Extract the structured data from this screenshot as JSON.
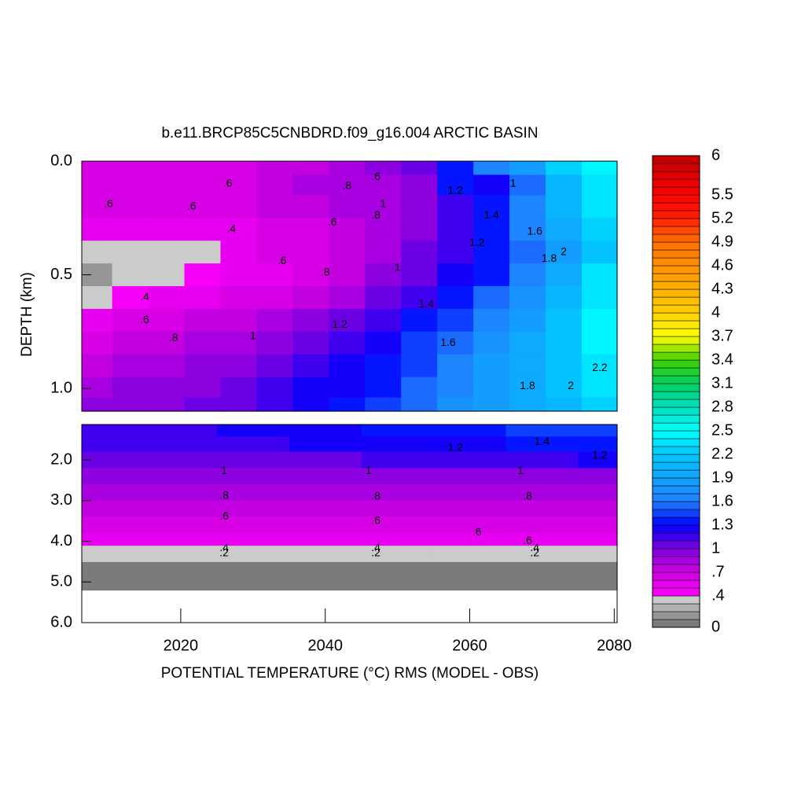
{
  "chart_data": {
    "type": "contour",
    "title": "b.e11.BRCP85C5CNBDRD.f09_g16.004 ARCTIC BASIN",
    "xlabel": "POTENTIAL TEMPERATURE (°C) RMS (MODEL - OBS)",
    "ylabel": "DEPTH (km)",
    "xlim": [
      2006.3,
      2080.4
    ],
    "xticks": [
      2020,
      2040,
      2060,
      2080
    ],
    "contour_interval": 0.1,
    "panels": [
      {
        "ylim": [
          0,
          1.1
        ],
        "yticks": [
          {
            "value": 0,
            "label": "0.0"
          },
          {
            "value": 0.5,
            "label": "0.5"
          },
          {
            "value": 1.0,
            "label": "1.0"
          }
        ],
        "x": [
          2008,
          2013,
          2018,
          2023,
          2028,
          2033,
          2038,
          2043,
          2048,
          2053,
          2058,
          2063,
          2068,
          2073,
          2078
        ],
        "y": [
          0.02,
          0.1,
          0.2,
          0.3,
          0.4,
          0.5,
          0.6,
          0.7,
          0.8,
          0.9,
          1.0,
          1.08
        ],
        "z": [
          [
            0.6,
            0.6,
            0.6,
            0.6,
            0.6,
            0.7,
            0.7,
            0.8,
            0.9,
            1.0,
            1.3,
            1.6,
            1.8,
            2.2,
            2.4
          ],
          [
            0.6,
            0.6,
            0.6,
            0.6,
            0.6,
            0.7,
            0.8,
            0.8,
            0.8,
            0.9,
            1.3,
            1.2,
            1.5,
            2.0,
            2.3
          ],
          [
            0.6,
            0.6,
            0.6,
            0.6,
            0.6,
            0.7,
            0.7,
            0.8,
            0.8,
            0.9,
            1.1,
            1.3,
            1.6,
            2.0,
            2.3
          ],
          [
            0.5,
            0.5,
            0.5,
            0.5,
            0.5,
            0.6,
            0.6,
            0.7,
            0.8,
            0.9,
            1.1,
            1.3,
            1.6,
            1.9,
            2.2
          ],
          [
            0.35,
            0.35,
            0.35,
            0.35,
            0.5,
            0.6,
            0.6,
            0.7,
            0.8,
            1.0,
            1.1,
            1.3,
            1.5,
            1.8,
            2.1
          ],
          [
            0.15,
            0.3,
            0.35,
            0.45,
            0.5,
            0.55,
            0.65,
            0.75,
            0.9,
            1.0,
            1.2,
            1.35,
            1.6,
            1.9,
            2.3
          ],
          [
            0.35,
            0.4,
            0.5,
            0.55,
            0.6,
            0.65,
            0.75,
            0.85,
            1.0,
            1.15,
            1.3,
            1.5,
            1.7,
            2.0,
            2.3
          ],
          [
            0.55,
            0.6,
            0.65,
            0.7,
            0.75,
            0.8,
            0.9,
            1.0,
            1.15,
            1.3,
            1.45,
            1.6,
            1.8,
            2.1,
            2.4
          ],
          [
            0.65,
            0.7,
            0.75,
            0.8,
            0.85,
            0.9,
            1.0,
            1.1,
            1.25,
            1.4,
            1.55,
            1.7,
            1.9,
            2.1,
            2.4
          ],
          [
            0.75,
            0.8,
            0.85,
            0.9,
            0.95,
            1.0,
            1.1,
            1.2,
            1.3,
            1.45,
            1.6,
            1.8,
            1.9,
            2.1,
            2.3
          ],
          [
            0.85,
            0.9,
            0.9,
            0.95,
            1.0,
            1.1,
            1.2,
            1.25,
            1.35,
            1.5,
            1.65,
            1.8,
            1.95,
            2.1,
            2.3
          ],
          [
            0.9,
            0.9,
            0.95,
            1.0,
            1.05,
            1.15,
            1.2,
            1.3,
            1.4,
            1.55,
            1.7,
            1.85,
            1.95,
            2.05,
            2.2
          ]
        ],
        "contour_labels": [
          {
            "text": ".6",
            "x": 2026.5,
            "y": 0.1
          },
          {
            "text": ".6",
            "x": 2010,
            "y": 0.19
          },
          {
            "text": ".6",
            "x": 2021.5,
            "y": 0.2
          },
          {
            "text": ".4",
            "x": 2027,
            "y": 0.3
          },
          {
            "text": ".4",
            "x": 2015,
            "y": 0.6
          },
          {
            "text": ".6",
            "x": 2015,
            "y": 0.7
          },
          {
            "text": ".8",
            "x": 2019,
            "y": 0.78
          },
          {
            "text": ".6",
            "x": 2034,
            "y": 0.44
          },
          {
            "text": ".8",
            "x": 2040,
            "y": 0.49
          },
          {
            "text": "1",
            "x": 2030,
            "y": 0.77
          },
          {
            "text": "1.2",
            "x": 2042,
            "y": 0.72
          },
          {
            "text": "1.4",
            "x": 2054,
            "y": 0.63
          },
          {
            "text": "1.6",
            "x": 2057,
            "y": 0.8
          },
          {
            "text": "1.8",
            "x": 2068,
            "y": 0.99
          },
          {
            "text": "2",
            "x": 2074,
            "y": 0.99
          },
          {
            "text": "2.2",
            "x": 2078,
            "y": 0.91
          },
          {
            "text": ".8",
            "x": 2043,
            "y": 0.11
          },
          {
            "text": ".6",
            "x": 2047,
            "y": 0.07
          },
          {
            "text": "1",
            "x": 2048,
            "y": 0.19
          },
          {
            "text": ".8",
            "x": 2047,
            "y": 0.24
          },
          {
            "text": ".6",
            "x": 2041,
            "y": 0.27
          },
          {
            "text": "1",
            "x": 2050,
            "y": 0.47
          },
          {
            "text": "1.2",
            "x": 2058,
            "y": 0.13
          },
          {
            "text": "1",
            "x": 2066,
            "y": 0.1
          },
          {
            "text": "1.4",
            "x": 2063,
            "y": 0.24
          },
          {
            "text": "1.2",
            "x": 2061,
            "y": 0.36
          },
          {
            "text": "1.6",
            "x": 2069,
            "y": 0.31
          },
          {
            "text": "1.8",
            "x": 2071,
            "y": 0.43
          },
          {
            "text": "2",
            "x": 2073,
            "y": 0.4
          }
        ]
      },
      {
        "ylim": [
          1.13,
          6.0
        ],
        "yticks": [
          {
            "value": 2,
            "label": "2.0"
          },
          {
            "value": 3,
            "label": "3.0"
          },
          {
            "value": 4,
            "label": "4.0"
          },
          {
            "value": 5,
            "label": "5.0"
          },
          {
            "value": 6,
            "label": "6.0"
          }
        ],
        "x": [
          2010,
          2020,
          2030,
          2040,
          2050,
          2060,
          2070,
          2080
        ],
        "y": [
          1.25,
          1.6,
          2.0,
          2.4,
          2.8,
          3.2,
          3.6,
          4.0,
          4.22,
          4.8,
          5.6
        ],
        "z": [
          [
            1.1,
            1.15,
            1.2,
            1.25,
            1.3,
            1.35,
            1.4,
            1.4
          ],
          [
            1.1,
            1.1,
            1.15,
            1.2,
            1.2,
            1.25,
            1.3,
            1.3
          ],
          [
            1.0,
            1.0,
            1.05,
            1.05,
            1.1,
            1.1,
            1.15,
            1.2
          ],
          [
            0.95,
            0.95,
            0.95,
            0.95,
            0.95,
            0.95,
            0.95,
            0.95
          ],
          [
            0.85,
            0.85,
            0.85,
            0.85,
            0.85,
            0.85,
            0.85,
            0.85
          ],
          [
            0.7,
            0.7,
            0.7,
            0.7,
            0.7,
            0.7,
            0.7,
            0.7
          ],
          [
            0.6,
            0.6,
            0.6,
            0.6,
            0.6,
            0.6,
            0.6,
            0.6
          ],
          [
            0.5,
            0.5,
            0.5,
            0.5,
            0.5,
            0.5,
            0.5,
            0.5
          ],
          [
            0.3,
            0.3,
            0.3,
            0.3,
            0.3,
            0.3,
            0.3,
            0.3
          ],
          [
            0,
            0,
            0,
            0,
            0,
            0,
            0,
            0
          ],
          [
            null,
            null,
            null,
            null,
            null,
            null,
            null,
            null
          ]
        ],
        "contour_labels": [
          {
            "text": "1.2",
            "x": 2058,
            "y": 1.71
          },
          {
            "text": "1.4",
            "x": 2070,
            "y": 1.56
          },
          {
            "text": "1.2",
            "x": 2078,
            "y": 1.9
          },
          {
            "text": "1",
            "x": 2026,
            "y": 2.28
          },
          {
            "text": "1",
            "x": 2046,
            "y": 2.28
          },
          {
            "text": "1",
            "x": 2067,
            "y": 2.28
          },
          {
            "text": ".8",
            "x": 2026,
            "y": 2.88
          },
          {
            "text": ".8",
            "x": 2047,
            "y": 2.9
          },
          {
            "text": ".8",
            "x": 2068,
            "y": 2.9
          },
          {
            "text": ".6",
            "x": 2026,
            "y": 3.4
          },
          {
            "text": ".6",
            "x": 2047,
            "y": 3.5
          },
          {
            "text": ".6",
            "x": 2061,
            "y": 3.78
          },
          {
            "text": ".6",
            "x": 2068,
            "y": 4.0
          },
          {
            "text": ".4",
            "x": 2026,
            "y": 4.17
          },
          {
            "text": ".2",
            "x": 2026,
            "y": 4.3
          },
          {
            "text": ".4",
            "x": 2047,
            "y": 4.17
          },
          {
            "text": ".2",
            "x": 2047,
            "y": 4.3
          },
          {
            "text": ".4",
            "x": 2069,
            "y": 4.17
          },
          {
            "text": ".2",
            "x": 2069,
            "y": 4.3
          }
        ]
      }
    ],
    "colorbar": {
      "lim": [
        0,
        6
      ],
      "ticks": [
        0,
        {
          "value": 0.4,
          "label": ".4"
        },
        {
          "value": 0.7,
          "label": ".7"
        },
        1,
        1.3,
        1.6,
        1.9,
        2.2,
        2.5,
        2.8,
        3.1,
        3.4,
        3.7,
        4,
        4.3,
        4.6,
        4.9,
        5.2,
        5.5,
        6
      ],
      "stops": [
        [
          0,
          "#6e6e6e"
        ],
        [
          0.39,
          "#d6d6d6"
        ],
        [
          0.4,
          "#ff00ff"
        ],
        [
          0.7,
          "#d000e0"
        ],
        [
          1.0,
          "#8000e0"
        ],
        [
          1.3,
          "#0000ff"
        ],
        [
          1.6,
          "#2080ff"
        ],
        [
          2.2,
          "#00c8ff"
        ],
        [
          2.5,
          "#00ffff"
        ],
        [
          2.8,
          "#00e0c0"
        ],
        [
          3.1,
          "#00d060"
        ],
        [
          3.4,
          "#40d000"
        ],
        [
          3.7,
          "#ffff00"
        ],
        [
          4.0,
          "#ffd000"
        ],
        [
          4.6,
          "#ff9000"
        ],
        [
          4.9,
          "#ff7000"
        ],
        [
          5.2,
          "#ff2000"
        ],
        [
          5.5,
          "#ff0000"
        ],
        [
          6.0,
          "#c00000"
        ]
      ]
    }
  }
}
